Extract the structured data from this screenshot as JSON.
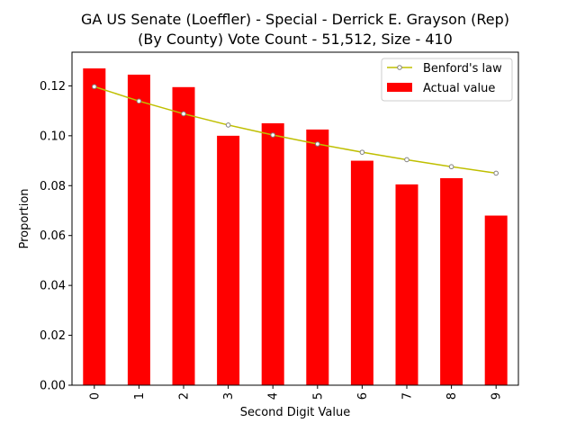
{
  "chart_data": {
    "type": "bar",
    "title": "GA US Senate (Loeffler) - Special - Derrick E. Grayson (Rep)",
    "subtitle": "(By County) Vote Count - 51,512, Size - 410",
    "xlabel": "Second Digit Value",
    "ylabel": "Proportion",
    "categories": [
      "0",
      "1",
      "2",
      "3",
      "4",
      "5",
      "6",
      "7",
      "8",
      "9"
    ],
    "ylim": [
      0,
      0.1335
    ],
    "yticks": [
      "0.00",
      "0.02",
      "0.04",
      "0.06",
      "0.08",
      "0.10",
      "0.12"
    ],
    "grid": false,
    "legend_position": "top-right",
    "series": [
      {
        "name": "Actual value",
        "kind": "bar",
        "color": "#ff0000",
        "values": [
          0.127,
          0.1245,
          0.1195,
          0.1,
          0.105,
          0.1025,
          0.09,
          0.0805,
          0.083,
          0.068
        ]
      },
      {
        "name": "Benford's law",
        "kind": "line",
        "color": "#bfbf00",
        "marker_edge": "#808080",
        "values": [
          0.1197,
          0.1139,
          0.1088,
          0.1043,
          0.1003,
          0.0967,
          0.0934,
          0.0904,
          0.0876,
          0.085
        ]
      }
    ]
  }
}
